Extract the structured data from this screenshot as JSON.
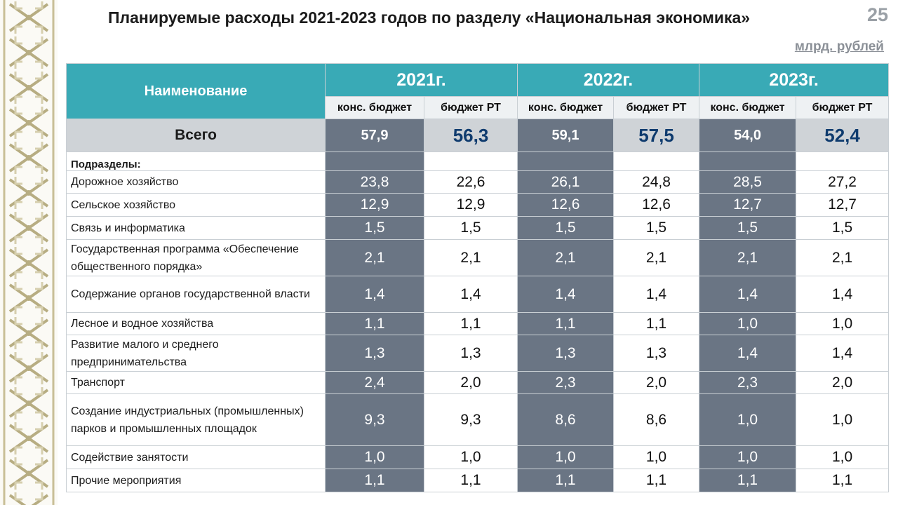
{
  "title": "Планируемые расходы 2021-2023 годов по разделу «Национальная экономика»",
  "page_number": "25",
  "units": "млрд. рублей",
  "table": {
    "name_header": "Наименование",
    "years": [
      "2021г.",
      "2022г.",
      "2023г."
    ],
    "subheaders": [
      "конс. бюджет",
      "бюджет РТ"
    ],
    "total": {
      "label": "Всего",
      "values": [
        "57,9",
        "56,3",
        "59,1",
        "57,5",
        "54,0",
        "52,4"
      ]
    },
    "subsections_label": "Подразделы:",
    "rows": [
      {
        "label": "Дорожное хозяйство",
        "values": [
          "23,8",
          "22,6",
          "26,1",
          "24,8",
          "28,5",
          "27,2"
        ]
      },
      {
        "label": "Сельское хозяйство",
        "values": [
          "12,9",
          "12,9",
          "12,6",
          "12,6",
          "12,7",
          "12,7"
        ]
      },
      {
        "label": "Связь и информатика",
        "values": [
          "1,5",
          "1,5",
          "1,5",
          "1,5",
          "1,5",
          "1,5"
        ]
      },
      {
        "label": "Государственная программа «Обеспечение общественного порядка»",
        "values": [
          "2,1",
          "2,1",
          "2,1",
          "2,1",
          "2,1",
          "2,1"
        ]
      },
      {
        "label": "Содержание органов государственной власти",
        "values": [
          "1,4",
          "1,4",
          "1,4",
          "1,4",
          "1,4",
          "1,4"
        ]
      },
      {
        "label": "Лесное и водное хозяйства",
        "values": [
          "1,1",
          "1,1",
          "1,1",
          "1,1",
          "1,0",
          "1,0"
        ]
      },
      {
        "label": "Развитие малого и среднего предпринимательства",
        "values": [
          "1,3",
          "1,3",
          "1,3",
          "1,3",
          "1,4",
          "1,4"
        ]
      },
      {
        "label": "Транспорт",
        "values": [
          "2,4",
          "2,0",
          "2,3",
          "2,0",
          "2,3",
          "2,0"
        ]
      },
      {
        "label": "Создание индустриальных (промышленных) парков и промышленных площадок",
        "values": [
          "9,3",
          "9,3",
          "8,6",
          "8,6",
          "1,0",
          "1,0"
        ]
      },
      {
        "label": "Содействие занятости",
        "values": [
          "1,0",
          "1,0",
          "1,0",
          "1,0",
          "1,0",
          "1,0"
        ]
      },
      {
        "label": "Прочие мероприятия",
        "values": [
          "1,1",
          "1,1",
          "1,1",
          "1,1",
          "1,1",
          "1,1"
        ]
      }
    ]
  },
  "colors": {
    "header_teal": "#39aab6",
    "dark_column": "#6a7584",
    "total_row_bg": "#cfd3d7",
    "ornament": "#c8bf96"
  }
}
